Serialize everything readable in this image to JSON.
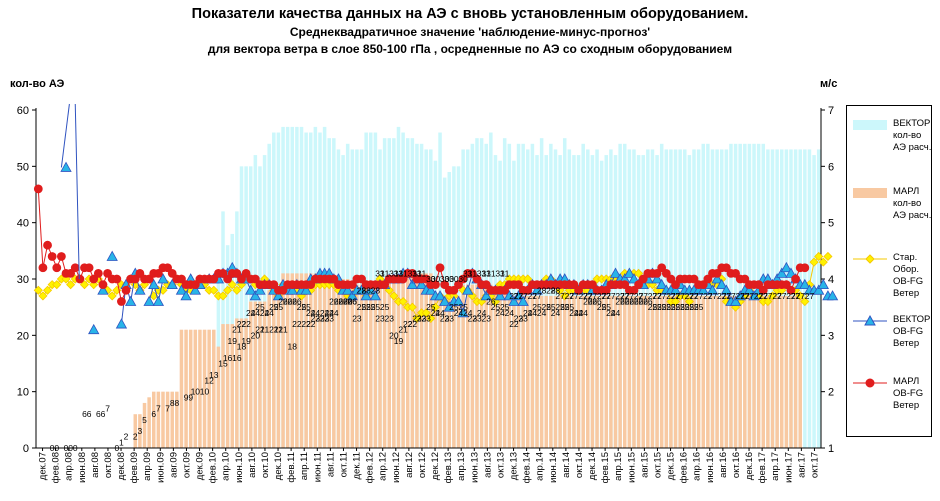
{
  "title": {
    "line1": "Показатели качества данных на АЭ с вновь установленным оборудованием.",
    "line2": "Среднеквадратичное значение 'наблюдение-минус-прогноз'",
    "line3": "для вектора ветра в слое 850-100 гПа , осредненные по АЭ со сходным  оборудованием"
  },
  "colors": {
    "vector_count": "#ccf7fb",
    "marl_count": "#f8c9a2",
    "star": "#f6c800",
    "vector_obfg": "#2f53c0",
    "marl_obfg": "#e01d1d",
    "vector_fill": "#28b4e8",
    "star_fill": "#fff200"
  },
  "chart_data": {
    "type": "bar+line",
    "left_axis_label": "кол-во АЭ",
    "right_axis_label": "м/с",
    "left_ylim": [
      0,
      60
    ],
    "right_ylim": [
      1,
      7
    ],
    "left_ticks": [
      "0",
      "10",
      "20",
      "30",
      "40",
      "50",
      "60"
    ],
    "right_ticks": [
      "1",
      "2",
      "3",
      "4",
      "5",
      "6",
      "7"
    ],
    "grid": false,
    "legend_position": "right",
    "x_labels": [
      "дек.07",
      "фев.08",
      "апр.08",
      "июн.08",
      "авг.08",
      "окт.08",
      "дек.08",
      "фев.09",
      "апр.09",
      "июн.09",
      "авг.09",
      "окт.09",
      "дек.09",
      "фев.10",
      "апр.10",
      "июн.10",
      "авг.10",
      "окт.10",
      "дек.10",
      "фев.11",
      "апр.11",
      "июн.11",
      "авг.11",
      "окт.11",
      "дек.11",
      "фев.12",
      "апр.12",
      "июн.12",
      "авг.12",
      "окт.12",
      "дек.12",
      "фев.13",
      "апр.13",
      "июн.13",
      "авг.13",
      "окт.13",
      "дек.13",
      "фев.14",
      "апр.14",
      "июн.14",
      "авг.14",
      "окт.14",
      "дек.14",
      "фев.15",
      "апр.15",
      "июн.15",
      "авг.15",
      "окт.15",
      "дек.15",
      "фев.16",
      "апр.16",
      "июн.16",
      "авг.16",
      "окт.16",
      "дек.16",
      "фев.17",
      "апр.17",
      "июн.17",
      "авг.17",
      "окт.17"
    ],
    "series": [
      {
        "name": "ВЕКТОР кол-во АЭ расч.",
        "axis": "left",
        "kind": "bar",
        "values": [
          0,
          0,
          0,
          0,
          0,
          0,
          0,
          0,
          0,
          0,
          0,
          0,
          0,
          0,
          0,
          0,
          0,
          0,
          0,
          0,
          0,
          0,
          0,
          0,
          0,
          0,
          0,
          0,
          0,
          0,
          0,
          0,
          0,
          0,
          0,
          0,
          0,
          0,
          0,
          30,
          42,
          36,
          38,
          42,
          50,
          50,
          50,
          52,
          50,
          52,
          54,
          56,
          56,
          57,
          57,
          57,
          57,
          57,
          56,
          56,
          57,
          56,
          57,
          55,
          55,
          53,
          52,
          54,
          53,
          53,
          53,
          56,
          56,
          56,
          53,
          55,
          55,
          55,
          57,
          56,
          55,
          55,
          54,
          54,
          53,
          53,
          51,
          56,
          48,
          49,
          50,
          50,
          53,
          53,
          54,
          55,
          55,
          54,
          56,
          52,
          51,
          55,
          54,
          51,
          54,
          54,
          53,
          54,
          52,
          55,
          52,
          54,
          53,
          52,
          55,
          53,
          52,
          52,
          54,
          53,
          52,
          53,
          51,
          52,
          53,
          52,
          54,
          54,
          53,
          53,
          52,
          52,
          53,
          53,
          52,
          54,
          53,
          53,
          53,
          53,
          53,
          52,
          53,
          53,
          54,
          54,
          53,
          53,
          53,
          53,
          54,
          54,
          54,
          54,
          54,
          54,
          54,
          54,
          53,
          53,
          53,
          53,
          53,
          53,
          53,
          53,
          53,
          53,
          52,
          53
        ]
      },
      {
        "name": "МАРЛ кол-во АЭ расч.",
        "axis": "left",
        "kind": "bar",
        "values": [
          0,
          0,
          0,
          0,
          0,
          0,
          0,
          0,
          0,
          0,
          0,
          0,
          0,
          0,
          0,
          0,
          0,
          0,
          0,
          0,
          0,
          6,
          6,
          8,
          9,
          10,
          10,
          10,
          10,
          10,
          10,
          21,
          21,
          21,
          21,
          21,
          21,
          21,
          21,
          18,
          22,
          22,
          22,
          23,
          23,
          23,
          26,
          26,
          26,
          26,
          28,
          28,
          28,
          31,
          31,
          31,
          31,
          31,
          31,
          31,
          31,
          30,
          30,
          30,
          30,
          30,
          30,
          30,
          29,
          29,
          29,
          29,
          29,
          29,
          29,
          30,
          30,
          30,
          30,
          31,
          31,
          31,
          31,
          31,
          31,
          31,
          27,
          27,
          27,
          27,
          27,
          27,
          29,
          29,
          29,
          29,
          29,
          29,
          29,
          28,
          28,
          28,
          27,
          27,
          27,
          27,
          27,
          27,
          27,
          27,
          27,
          27,
          27,
          27,
          27,
          27,
          27,
          27,
          27,
          27,
          27,
          27,
          27,
          27,
          27,
          27,
          27,
          27,
          27,
          27,
          27,
          27,
          27,
          27,
          27,
          27,
          27,
          27,
          27,
          27,
          27,
          27,
          27,
          27,
          27,
          27,
          27,
          27,
          27,
          27,
          27,
          27,
          27,
          27,
          27,
          27,
          27,
          27,
          27,
          27,
          27,
          27,
          27,
          27,
          27,
          27
        ]
      },
      {
        "name": "Стар. Обор. OB-FG Ветер",
        "axis": "right",
        "kind": "line",
        "values": [
          3.8,
          3.7,
          3.8,
          3.9,
          3.9,
          4.0,
          4.0,
          3.9,
          4.0,
          4.0,
          3.9,
          4.0,
          3.9,
          4.0,
          3.9,
          3.8,
          3.7,
          3.8,
          3.9,
          3.9,
          4.0,
          3.9,
          3.8,
          3.9,
          4.0,
          3.7,
          3.8,
          3.8,
          3.9,
          3.9,
          4.0,
          3.9,
          3.8,
          3.8,
          3.9,
          4.0,
          3.9,
          3.8,
          3.8,
          3.7,
          3.7,
          3.8,
          3.9,
          3.8,
          3.9,
          4.0,
          4.0,
          3.9,
          3.9,
          4.0,
          3.9,
          3.8,
          3.7,
          3.9,
          3.8,
          3.8,
          3.8,
          3.7,
          3.8,
          3.8,
          3.9,
          3.9,
          3.9,
          3.9,
          3.9,
          3.8,
          3.8,
          3.7,
          3.7,
          3.8,
          3.8,
          3.7,
          3.9,
          3.9,
          4.0,
          3.9,
          3.8,
          3.7,
          3.6,
          3.6,
          3.5,
          3.5,
          3.3,
          3.4,
          3.4,
          3.3,
          3.5,
          3.7,
          3.6,
          3.7,
          3.7,
          3.9,
          3.8,
          3.8,
          3.7,
          3.6,
          3.6,
          3.7,
          3.7,
          3.6,
          3.9,
          3.9,
          4.0,
          4.0,
          4.0,
          4.0,
          4.0,
          3.9,
          3.9,
          3.9,
          4.0,
          4.0,
          3.9,
          3.8,
          3.7,
          3.8,
          3.8,
          3.8,
          3.8,
          3.8,
          3.9,
          4.0,
          4.0,
          4.0,
          4.0,
          4.0,
          4.0,
          4.1,
          4.1,
          4.1,
          4.1,
          4.0,
          3.9,
          3.9,
          3.8,
          3.8,
          3.8,
          3.6,
          3.6,
          3.7,
          3.7,
          3.6,
          3.8,
          3.9,
          3.9,
          3.9,
          3.9,
          3.9,
          4.0,
          3.6,
          3.6,
          3.5,
          3.6,
          3.7,
          3.8,
          3.7,
          3.7,
          3.6,
          3.6,
          3.7,
          3.8,
          3.8,
          3.9,
          3.8,
          3.8,
          3.7,
          3.6,
          3.9,
          4.3,
          4.4,
          4.3,
          4.4
        ]
      },
      {
        "name": "ВЕКТОР OB-FG Ветер",
        "axis": "right",
        "kind": "line",
        "values": [
          null,
          null,
          null,
          null,
          null,
          null,
          5.98,
          null,
          null,
          null,
          null,
          null,
          3.1,
          null,
          3.8,
          null,
          4.4,
          null,
          3.2,
          3.9,
          3.6,
          4.1,
          3.8,
          null,
          3.6,
          3.9,
          3.6,
          4.0,
          null,
          3.9,
          null,
          3.8,
          3.7,
          4.0,
          3.8,
          3.9,
          null,
          4.0,
          4.0,
          4.0,
          4.1,
          4.1,
          4.2,
          4.1,
          4.0,
          4.0,
          3.8,
          3.7,
          3.8,
          3.9,
          3.9,
          3.8,
          3.7,
          3.9,
          3.8,
          3.8,
          3.9,
          3.8,
          3.8,
          4.0,
          4.0,
          4.1,
          4.1,
          4.1,
          4.0,
          4.0,
          3.8,
          3.8,
          3.7,
          3.8,
          3.8,
          3.7,
          3.8,
          3.7,
          3.9,
          3.9,
          4.0,
          4.0,
          4.0,
          4.1,
          4.1,
          3.9,
          4.0,
          3.9,
          3.8,
          3.8,
          3.7,
          3.7,
          3.6,
          3.5,
          3.6,
          3.6,
          3.4,
          3.8,
          4.1,
          4.0,
          3.9,
          3.7,
          3.8,
          3.8,
          3.7,
          3.8,
          3.7,
          3.6,
          3.7,
          3.6,
          3.8,
          3.9,
          3.8,
          3.9,
          3.9,
          4.0,
          3.9,
          4.0,
          4.0,
          3.9,
          3.9,
          3.8,
          3.9,
          3.9,
          3.8,
          3.8,
          3.8,
          3.9,
          3.9,
          4.1,
          4.0,
          4.0,
          4.1,
          4.0,
          3.9,
          3.9,
          4.0,
          4.1,
          4.0,
          3.9,
          3.8,
          3.8,
          3.8,
          3.9,
          3.8,
          3.8,
          3.8,
          3.8,
          3.8,
          3.9,
          3.8,
          4.0,
          3.9,
          3.8,
          3.6,
          3.6,
          3.7,
          3.8,
          3.8,
          3.7,
          3.8,
          4.0,
          4.0,
          3.9,
          4.0,
          4.1,
          4.2,
          4.1,
          4.0,
          3.9,
          3.9,
          3.8,
          3.8,
          3.8,
          3.9,
          3.7,
          3.7
        ]
      },
      {
        "name": "МАРЛ OB-FG Ветер",
        "axis": "right",
        "kind": "line",
        "values": [
          5.6,
          4.2,
          4.6,
          4.4,
          4.2,
          4.4,
          4.1,
          4.1,
          4.2,
          4.0,
          4.2,
          4.2,
          4.0,
          4.1,
          3.9,
          4.1,
          4.0,
          4.0,
          3.6,
          3.8,
          4.0,
          4.0,
          4.1,
          4.0,
          4.0,
          4.1,
          4.1,
          4.2,
          4.2,
          4.1,
          4.0,
          4.0,
          3.9,
          3.9,
          3.9,
          4.0,
          4.0,
          4.0,
          4.0,
          4.1,
          4.1,
          4.0,
          4.1,
          4.1,
          4.0,
          4.1,
          4.0,
          4.0,
          3.9,
          3.9,
          3.9,
          3.9,
          3.8,
          3.8,
          3.9,
          3.9,
          3.9,
          3.9,
          3.9,
          3.9,
          4.0,
          4.0,
          4.0,
          4.0,
          4.0,
          3.9,
          3.9,
          3.9,
          3.9,
          4.0,
          4.0,
          3.9,
          3.9,
          3.9,
          3.9,
          3.9,
          4.0,
          4.0,
          4.0,
          4.0,
          4.1,
          4.1,
          4.0,
          4.0,
          4.0,
          3.9,
          3.9,
          4.2,
          3.9,
          3.8,
          3.8,
          3.9,
          4.0,
          4.1,
          4.1,
          4.0,
          3.9,
          3.9,
          3.8,
          3.8,
          3.8,
          3.8,
          3.9,
          3.9,
          3.9,
          3.8,
          3.8,
          3.9,
          3.9,
          3.9,
          3.9,
          3.9,
          3.9,
          3.9,
          3.9,
          3.9,
          3.9,
          3.8,
          3.9,
          3.9,
          3.9,
          3.8,
          3.8,
          3.8,
          3.9,
          3.9,
          3.9,
          3.9,
          3.8,
          3.8,
          3.9,
          4.0,
          4.1,
          4.1,
          4.1,
          4.2,
          4.1,
          4.0,
          3.9,
          4.0,
          4.0,
          4.0,
          4.0,
          3.9,
          3.9,
          4.0,
          4.1,
          4.1,
          4.2,
          4.2,
          4.1,
          4.1,
          4.0,
          4.0,
          3.9,
          3.9,
          3.9,
          3.8,
          3.9,
          3.9,
          3.9,
          3.9,
          3.9,
          3.8,
          4.0,
          4.2,
          4.2
        ]
      }
    ],
    "vector_count_labels": [
      "19",
      "21",
      "22",
      "22",
      "24",
      "24",
      "25",
      "24",
      "24",
      "25",
      "25",
      "26",
      "26",
      "26",
      "26",
      "25",
      "25",
      "24",
      "24",
      "23",
      "24",
      "24",
      "24",
      "26",
      "26",
      "26",
      "26",
      "23",
      "25",
      "25",
      "25",
      "25",
      "23",
      "25",
      "23",
      "20",
      "19",
      "21",
      "22",
      "22",
      "23",
      "23",
      "23",
      "25",
      "24",
      "24",
      "23",
      "23",
      "25",
      "24",
      "25",
      "24",
      "23",
      "23",
      "24",
      "23",
      "26",
      "25",
      "24",
      "25",
      "24",
      "22",
      "23",
      "23",
      "24",
      "24",
      "25",
      "24",
      "25",
      "25",
      "24",
      "25",
      "25",
      "25",
      "24",
      "24",
      "24",
      "26",
      "26",
      "26",
      "25",
      "25",
      "24",
      "24",
      "26",
      "26",
      "26",
      "26",
      "26",
      "26",
      "26",
      "25",
      "25",
      "25",
      "25",
      "25",
      "25",
      "25",
      "25",
      "25",
      "25",
      "25"
    ],
    "marl_count_labels": [
      "0",
      "0",
      "0",
      "0",
      "0",
      "6",
      "6",
      "6",
      "6",
      "7",
      "0",
      "1",
      "2",
      "2",
      "3",
      "5",
      "6",
      "7",
      "7",
      "8",
      "8",
      "9",
      "9",
      "10",
      "10",
      "12",
      "13",
      "15",
      "16",
      "16",
      "18",
      "19",
      "20",
      "21",
      "21",
      "21",
      "21",
      "21",
      "18",
      "22",
      "22",
      "22",
      "23",
      "23",
      "23",
      "26",
      "26",
      "26",
      "26",
      "28",
      "28",
      "28",
      "31",
      "31",
      "31",
      "31",
      "31",
      "31",
      "31",
      "31",
      "30",
      "30",
      "30",
      "30",
      "30",
      "30",
      "31",
      "31",
      "31",
      "31",
      "31",
      "31",
      "31",
      "27",
      "27",
      "27",
      "27",
      "27",
      "28",
      "28",
      "28",
      "27",
      "27",
      "27",
      "27",
      "27",
      "27",
      "27",
      "27",
      "27",
      "27",
      "27",
      "27",
      "27",
      "27",
      "27",
      "27",
      "27",
      "27",
      "27",
      "27",
      "27",
      "27",
      "27",
      "27",
      "27",
      "27",
      "27",
      "27",
      "27",
      "27",
      "27",
      "27",
      "27",
      "27",
      "27",
      "27",
      "27",
      "27",
      "27",
      "27"
    ],
    "legend": [
      {
        "key": "vector_count",
        "label": "ВЕКТОР\nкол-во\nАЭ расч."
      },
      {
        "key": "marl_count",
        "label": "МАРЛ\nкол-во\nАЭ расч."
      },
      {
        "key": "star",
        "label": "Стар.\nОбор.\nOB-FG\nВетер"
      },
      {
        "key": "vector_obfg",
        "label": "ВЕКТОР\nOB-FG\nВетер"
      },
      {
        "key": "marl_obfg",
        "label": "МАРЛ\nOB-FG\nВетер"
      }
    ]
  }
}
